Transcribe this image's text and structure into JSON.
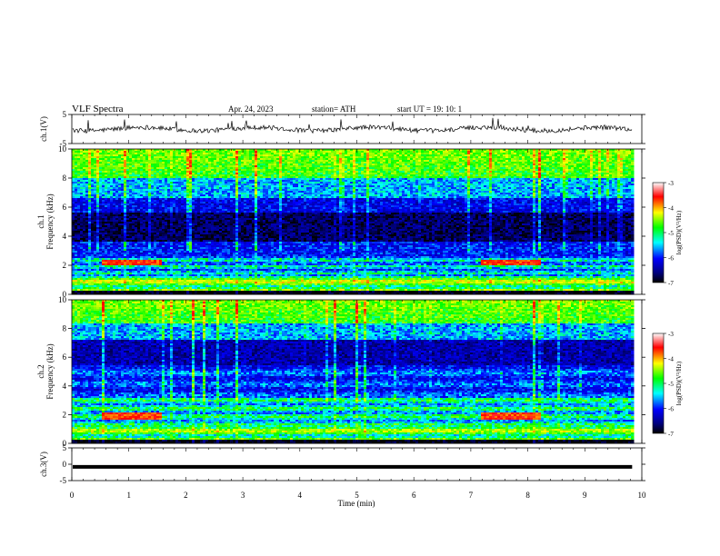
{
  "header": {
    "title": "VLF  Spectra",
    "date": "Apr. 24, 2023",
    "station": "station= ATH",
    "start": "start  UT  =    19: 10: 1"
  },
  "panels": {
    "ch1_wave_label": "ch.1(V)",
    "ch1_spec_label": "ch.1",
    "ch2_spec_label": "ch.2",
    "freq_label": "Frequency  (kHz)",
    "ch3_wave_label": "ch.3(V)",
    "time_label": "Time  (min)"
  },
  "colorbar": {
    "label": "log(PSD)(V²/Hz)",
    "ticks": [
      "-3",
      "-4",
      "-5",
      "-6",
      "-7"
    ],
    "colors": [
      "#ffffff",
      "#ff0000",
      "#ffff00",
      "#00ff00",
      "#00ffff",
      "#0000ff",
      "#000080",
      "#000000"
    ]
  },
  "chart_data": [
    {
      "type": "line",
      "name": "ch.1 waveform",
      "ylabel": "ch.1(V)",
      "ylim": [
        -5,
        5
      ],
      "yticks": [
        "5",
        "-5"
      ],
      "approx_level_v": 0
    },
    {
      "type": "heatmap",
      "name": "ch.1 spectrogram",
      "ylabel": "Frequency  (kHz)",
      "ylim": [
        0,
        10
      ],
      "yticks": [
        "10",
        "8",
        "6",
        "4",
        "2",
        "0"
      ],
      "clim": [
        -7,
        -3
      ],
      "features": {
        "quiet_band_khz": [
          3.5,
          5.5
        ],
        "noisy_band_khz": [
          6,
          10
        ],
        "burst_khz": [
          2,
          2.4
        ],
        "burst_times_min": [
          [
            0.5,
            1.55
          ],
          [
            7.15,
            8.2
          ]
        ]
      }
    },
    {
      "type": "heatmap",
      "name": "ch.2 spectrogram",
      "ylabel": "Frequency  (kHz)",
      "ylim": [
        0,
        10
      ],
      "yticks": [
        "10",
        "8",
        "6",
        "4",
        "2",
        "0"
      ],
      "clim": [
        -7,
        -3
      ],
      "features": {
        "quiet_band_khz": [
          5.5,
          7
        ],
        "noisy_band_khz": [
          7,
          10
        ],
        "burst_khz": [
          1.7,
          2.1
        ],
        "burst_times_min": [
          [
            0.5,
            1.55
          ],
          [
            7.15,
            8.2
          ]
        ]
      }
    },
    {
      "type": "line",
      "name": "ch.3 waveform",
      "ylabel": "ch.3(V)",
      "ylim": [
        -5,
        5
      ],
      "yticks": [
        "5",
        "0",
        "-5"
      ],
      "approx_level_v": -0.8
    }
  ],
  "time_axis": {
    "xlabel": "Time  (min)",
    "xlim": [
      0,
      10
    ],
    "data_end_min": 9.83,
    "ticks": [
      "0",
      "1",
      "2",
      "3",
      "4",
      "5",
      "6",
      "7",
      "8",
      "9",
      "10"
    ]
  }
}
